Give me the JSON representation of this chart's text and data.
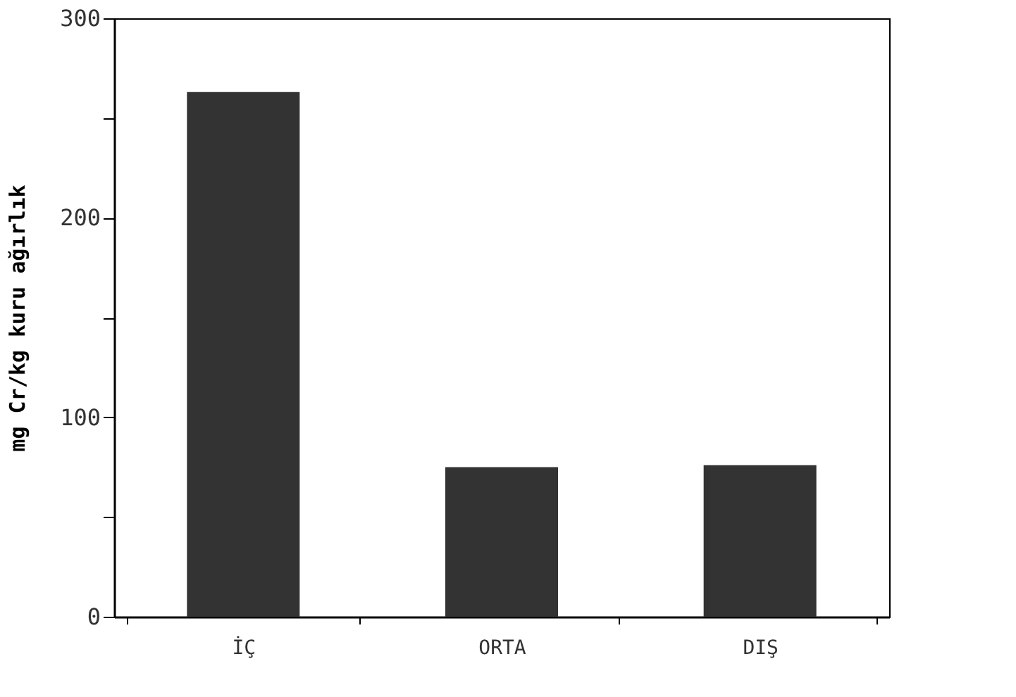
{
  "chart_data": {
    "type": "bar",
    "ylabel": "mg Cr/kg kuru ağırlık",
    "categories": [
      "İÇ",
      "ORTA",
      "DIŞ"
    ],
    "values": [
      263,
      75,
      76
    ],
    "color": "#333333",
    "ylim": [
      0,
      300
    ],
    "yticks": [
      0,
      {
        "value": 50,
        "label": null
      },
      100,
      {
        "value": 150,
        "label": null
      },
      200,
      {
        "value": 250,
        "label": null
      },
      300
    ],
    "grid": false
  }
}
